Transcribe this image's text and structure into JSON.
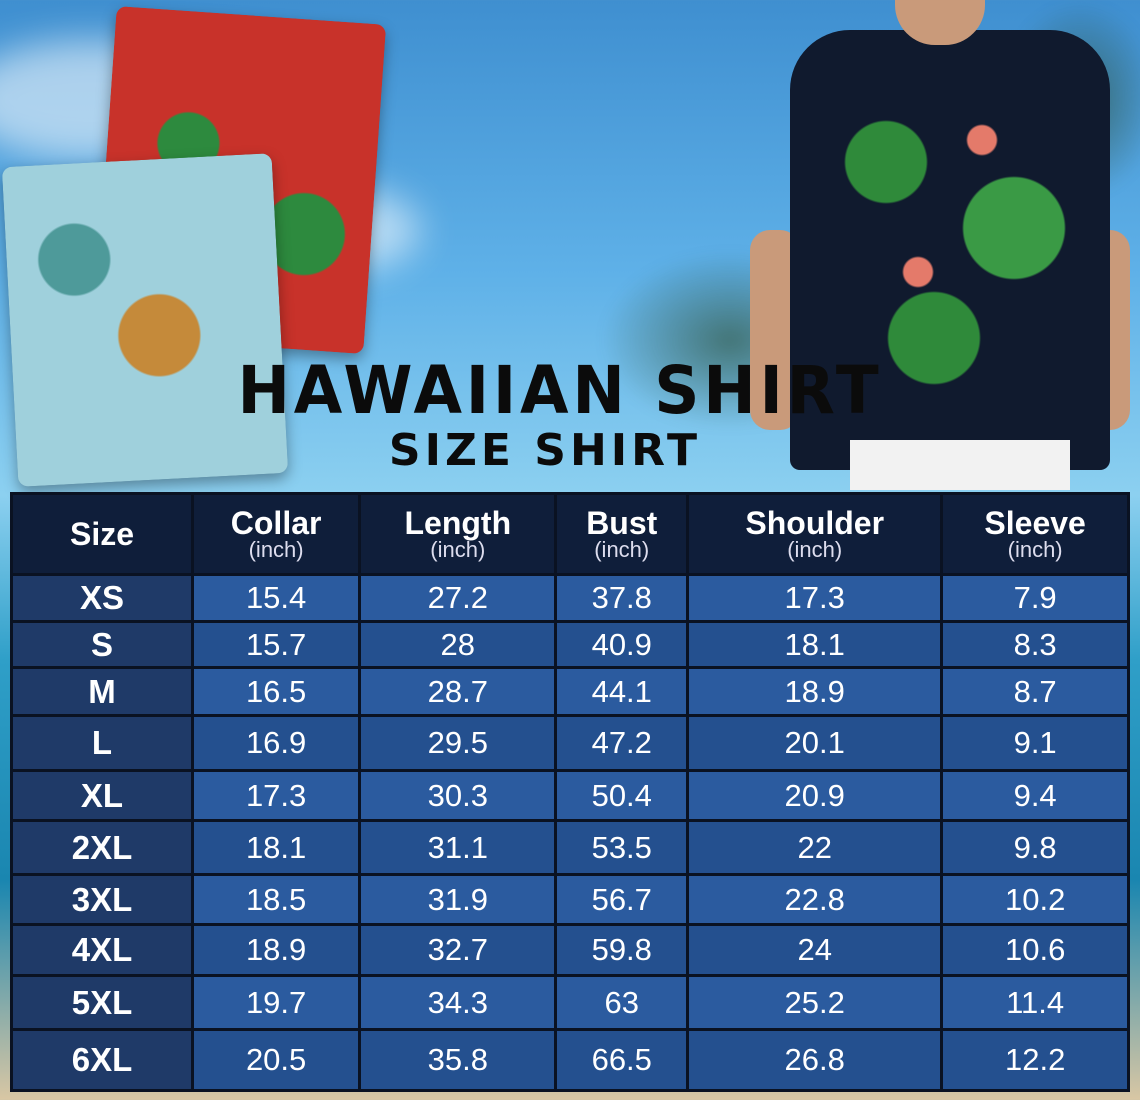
{
  "title": "HAWAIIAN SHIRT",
  "subtitle": "SIZE SHIRT",
  "table": {
    "columns": [
      {
        "label": "Size",
        "unit": ""
      },
      {
        "label": "Collar",
        "unit": "(inch)"
      },
      {
        "label": "Length",
        "unit": "(inch)"
      },
      {
        "label": "Bust",
        "unit": "(inch)"
      },
      {
        "label": "Shoulder",
        "unit": "(inch)"
      },
      {
        "label": "Sleeve",
        "unit": "(inch)"
      }
    ],
    "rows": [
      [
        "XS",
        "15.4",
        "27.2",
        "37.8",
        "17.3",
        "7.9"
      ],
      [
        "S",
        "15.7",
        "28",
        "40.9",
        "18.1",
        "8.3"
      ],
      [
        "M",
        "16.5",
        "28.7",
        "44.1",
        "18.9",
        "8.7"
      ],
      [
        "L",
        "16.9",
        "29.5",
        "47.2",
        "20.1",
        "9.1"
      ],
      [
        "XL",
        "17.3",
        "30.3",
        "50.4",
        "20.9",
        "9.4"
      ],
      [
        "2XL",
        "18.1",
        "31.1",
        "53.5",
        "22",
        "9.8"
      ],
      [
        "3XL",
        "18.5",
        "31.9",
        "56.7",
        "22.8",
        "10.2"
      ],
      [
        "4XL",
        "18.9",
        "32.7",
        "59.8",
        "24",
        "10.6"
      ],
      [
        "5XL",
        "19.7",
        "34.3",
        "63",
        "25.2",
        "11.4"
      ],
      [
        "6XL",
        "20.5",
        "35.8",
        "66.5",
        "26.8",
        "12.2"
      ]
    ]
  },
  "colors": {
    "header": "#0f1e3a",
    "size_cell": "#1f3a68",
    "value_cell": "#2b5b9f"
  }
}
